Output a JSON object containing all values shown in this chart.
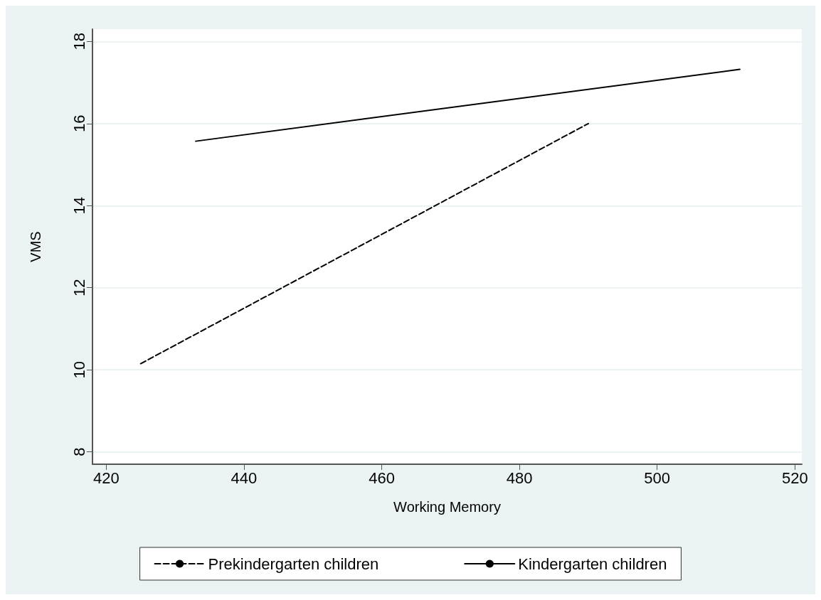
{
  "chart_data": {
    "type": "line",
    "xlabel": "Working Memory",
    "ylabel": "VMS",
    "xlim": [
      418,
      521
    ],
    "xticks": [
      420,
      440,
      460,
      480,
      500,
      520
    ],
    "ylim": [
      7.7,
      18.3
    ],
    "yticks": [
      8,
      10,
      12,
      14,
      16,
      18
    ],
    "grid": "y",
    "legend": "bottom",
    "marker": "none",
    "series": [
      {
        "name": "Prekindergarten children",
        "color": "#000000",
        "line_style": "dashed",
        "x": [
          425,
          490
        ],
        "values": [
          10.15,
          16.0
        ]
      },
      {
        "name": "Kindergarten children",
        "color": "#000000",
        "line_style": "solid",
        "x": [
          433,
          512
        ],
        "values": [
          15.57,
          17.32
        ]
      }
    ]
  }
}
